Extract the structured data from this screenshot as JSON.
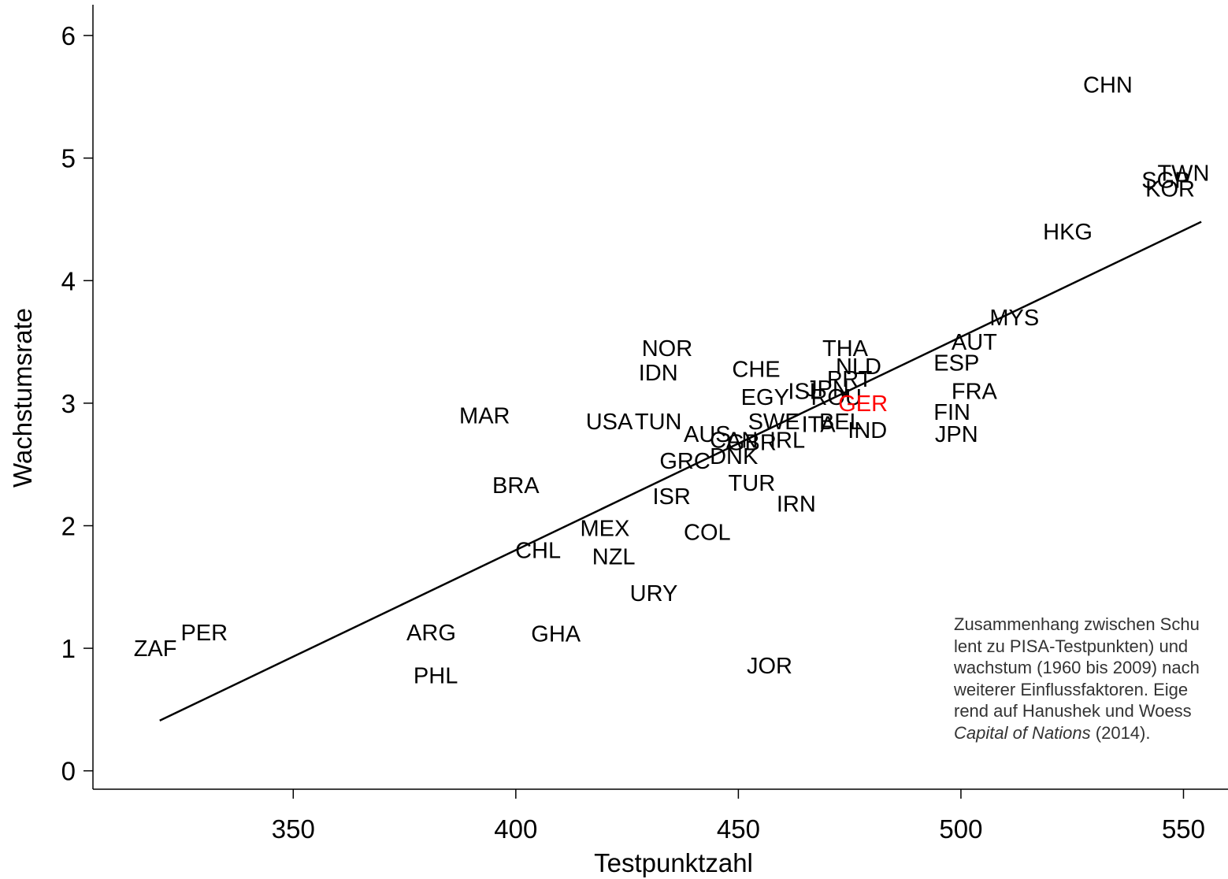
{
  "chart_data": {
    "type": "scatter",
    "xlabel": "Testpunktzahl",
    "ylabel": "Wachstumsrate",
    "xlim": [
      305,
      560
    ],
    "ylim": [
      -0.15,
      6.2
    ],
    "x_ticks": [
      350,
      400,
      450,
      500,
      550
    ],
    "y_ticks": [
      0,
      1,
      2,
      3,
      4,
      5,
      6
    ],
    "grid": false,
    "point_style": "text-labels",
    "highlight_color": "#ff0000",
    "label_color": "#000000",
    "points": [
      {
        "label": "CHN",
        "x": 533,
        "y": 5.6
      },
      {
        "label": "TWN",
        "x": 550,
        "y": 4.88
      },
      {
        "label": "SGP",
        "x": 546,
        "y": 4.82
      },
      {
        "label": "KOR",
        "x": 547,
        "y": 4.75
      },
      {
        "label": "HKG",
        "x": 524,
        "y": 4.4
      },
      {
        "label": "MYS",
        "x": 512,
        "y": 3.7
      },
      {
        "label": "AUT",
        "x": 503,
        "y": 3.5
      },
      {
        "label": "ESP",
        "x": 499,
        "y": 3.33
      },
      {
        "label": "THA",
        "x": 474,
        "y": 3.45
      },
      {
        "label": "NLD",
        "x": 477,
        "y": 3.3
      },
      {
        "label": "PRT",
        "x": 475,
        "y": 3.2
      },
      {
        "label": "JPN",
        "x": 470,
        "y": 3.12
      },
      {
        "label": "ISL",
        "x": 465,
        "y": 3.1
      },
      {
        "label": "ROU",
        "x": 472,
        "y": 3.05
      },
      {
        "label": "GER",
        "x": 478,
        "y": 3.0,
        "highlight": true
      },
      {
        "label": "FRA",
        "x": 503,
        "y": 3.1
      },
      {
        "label": "FIN",
        "x": 498,
        "y": 2.93
      },
      {
        "label": "JPN",
        "x": 499,
        "y": 2.75
      },
      {
        "label": "EGY",
        "x": 456,
        "y": 3.05
      },
      {
        "label": "NOR",
        "x": 434,
        "y": 3.45
      },
      {
        "label": "IDN",
        "x": 432,
        "y": 3.25
      },
      {
        "label": "CHE",
        "x": 454,
        "y": 3.28
      },
      {
        "label": "SWE",
        "x": 458,
        "y": 2.85
      },
      {
        "label": "ITA",
        "x": 468,
        "y": 2.83
      },
      {
        "label": "BEL",
        "x": 473,
        "y": 2.85
      },
      {
        "label": "IND",
        "x": 479,
        "y": 2.78
      },
      {
        "label": "AUS",
        "x": 443,
        "y": 2.75
      },
      {
        "label": "CAN",
        "x": 449,
        "y": 2.7
      },
      {
        "label": "GBR",
        "x": 453,
        "y": 2.68
      },
      {
        "label": "IRL",
        "x": 461,
        "y": 2.7
      },
      {
        "label": "DNK",
        "x": 449,
        "y": 2.57
      },
      {
        "label": "USA",
        "x": 421,
        "y": 2.85
      },
      {
        "label": "TUN",
        "x": 432,
        "y": 2.85
      },
      {
        "label": "GRC",
        "x": 438,
        "y": 2.53
      },
      {
        "label": "MAR",
        "x": 393,
        "y": 2.9
      },
      {
        "label": "BRA",
        "x": 400,
        "y": 2.33
      },
      {
        "label": "TUR",
        "x": 453,
        "y": 2.35
      },
      {
        "label": "ISR",
        "x": 435,
        "y": 2.24
      },
      {
        "label": "IRN",
        "x": 463,
        "y": 2.18
      },
      {
        "label": "MEX",
        "x": 420,
        "y": 1.98
      },
      {
        "label": "COL",
        "x": 443,
        "y": 1.95
      },
      {
        "label": "CHL",
        "x": 405,
        "y": 1.8
      },
      {
        "label": "NZL",
        "x": 422,
        "y": 1.75
      },
      {
        "label": "URY",
        "x": 431,
        "y": 1.45
      },
      {
        "label": "ARG",
        "x": 381,
        "y": 1.13
      },
      {
        "label": "GHA",
        "x": 409,
        "y": 1.12
      },
      {
        "label": "PER",
        "x": 330,
        "y": 1.13
      },
      {
        "label": "ZAF",
        "x": 319,
        "y": 1.0
      },
      {
        "label": "PHL",
        "x": 382,
        "y": 0.78
      },
      {
        "label": "JOR",
        "x": 457,
        "y": 0.86
      }
    ],
    "regression_line": {
      "x": [
        320,
        554
      ],
      "y": [
        0.41,
        4.48
      ]
    },
    "annotation": {
      "lines": [
        "Zusammenhang zwischen Schu",
        "lent zu PISA-Testpunkten) und",
        "wachstum (1960 bis 2009) nach",
        "weiterer Einflussfaktoren. Eige",
        "rend auf Hanushek und Woess"
      ],
      "italic_part": "Capital of Nations",
      "last_suffix": " (2014)."
    }
  }
}
